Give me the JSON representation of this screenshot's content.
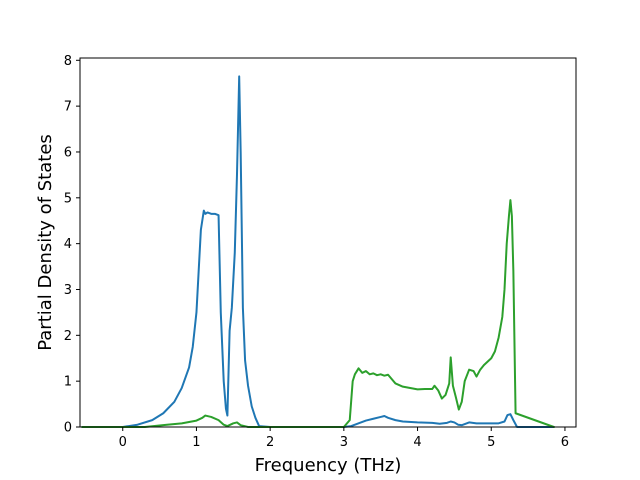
{
  "chart_data": {
    "type": "line",
    "title": "",
    "xlabel": "Frequency (THz)",
    "ylabel": "Partial Density of States",
    "xlim": [
      -0.58,
      6.15
    ],
    "ylim": [
      0,
      8.05
    ],
    "xticks": [
      0,
      1,
      2,
      3,
      4,
      5,
      6
    ],
    "yticks": [
      0,
      1,
      2,
      3,
      4,
      5,
      6,
      7,
      8
    ],
    "grid": false,
    "legend": "none",
    "series": [
      {
        "color": "#1f77b4",
        "x": [
          -0.55,
          0.0,
          0.2,
          0.4,
          0.55,
          0.7,
          0.8,
          0.9,
          0.95,
          1.0,
          1.03,
          1.06,
          1.1,
          1.12,
          1.15,
          1.2,
          1.25,
          1.3,
          1.33,
          1.37,
          1.4,
          1.42,
          1.45,
          1.48,
          1.52,
          1.55,
          1.58,
          1.6,
          1.63,
          1.66,
          1.7,
          1.75,
          1.8,
          1.85,
          2.0,
          2.5,
          3.0,
          3.1,
          3.2,
          3.3,
          3.4,
          3.5,
          3.55,
          3.6,
          3.7,
          3.8,
          4.0,
          4.2,
          4.3,
          4.4,
          4.45,
          4.5,
          4.55,
          4.6,
          4.7,
          4.8,
          5.0,
          5.1,
          5.18,
          5.22,
          5.26,
          5.3,
          5.35,
          5.85
        ],
        "y": [
          0,
          0,
          0.05,
          0.15,
          0.3,
          0.55,
          0.85,
          1.3,
          1.75,
          2.5,
          3.4,
          4.3,
          4.72,
          4.65,
          4.68,
          4.65,
          4.65,
          4.62,
          2.5,
          1.0,
          0.4,
          0.25,
          2.1,
          2.6,
          3.8,
          5.5,
          7.65,
          6.0,
          2.6,
          1.45,
          0.9,
          0.45,
          0.2,
          0.02,
          0,
          0,
          0,
          0.02,
          0.08,
          0.14,
          0.18,
          0.22,
          0.24,
          0.2,
          0.15,
          0.12,
          0.1,
          0.09,
          0.07,
          0.09,
          0.12,
          0.1,
          0.05,
          0.04,
          0.1,
          0.08,
          0.08,
          0.08,
          0.12,
          0.26,
          0.28,
          0.15,
          0,
          0
        ]
      },
      {
        "color": "#2ca02c",
        "x": [
          -0.55,
          0.0,
          0.3,
          0.6,
          0.8,
          1.0,
          1.08,
          1.12,
          1.2,
          1.3,
          1.37,
          1.42,
          1.5,
          1.55,
          1.6,
          1.65,
          1.7,
          1.8,
          2.0,
          2.5,
          3.0,
          3.08,
          3.12,
          3.15,
          3.2,
          3.25,
          3.3,
          3.35,
          3.4,
          3.45,
          3.5,
          3.55,
          3.6,
          3.7,
          3.8,
          3.9,
          4.0,
          4.1,
          4.2,
          4.23,
          4.28,
          4.33,
          4.38,
          4.43,
          4.45,
          4.48,
          4.52,
          4.56,
          4.6,
          4.64,
          4.7,
          4.76,
          4.8,
          4.85,
          4.9,
          5.0,
          5.05,
          5.1,
          5.15,
          5.18,
          5.21,
          5.24,
          5.26,
          5.28,
          5.3,
          5.33,
          5.85
        ],
        "y": [
          0,
          0,
          0,
          0.05,
          0.08,
          0.14,
          0.2,
          0.25,
          0.22,
          0.15,
          0.05,
          0.02,
          0.08,
          0.1,
          0.04,
          0.02,
          0.0,
          0.0,
          0,
          0,
          0,
          0.15,
          1.0,
          1.15,
          1.28,
          1.18,
          1.22,
          1.15,
          1.17,
          1.13,
          1.15,
          1.12,
          1.14,
          0.95,
          0.88,
          0.85,
          0.82,
          0.83,
          0.83,
          0.9,
          0.8,
          0.62,
          0.7,
          0.95,
          1.52,
          0.9,
          0.65,
          0.38,
          0.55,
          1.0,
          1.25,
          1.22,
          1.1,
          1.25,
          1.35,
          1.5,
          1.65,
          1.95,
          2.4,
          3.0,
          4.0,
          4.6,
          4.95,
          4.6,
          3.4,
          0.3,
          0
        ]
      }
    ]
  }
}
